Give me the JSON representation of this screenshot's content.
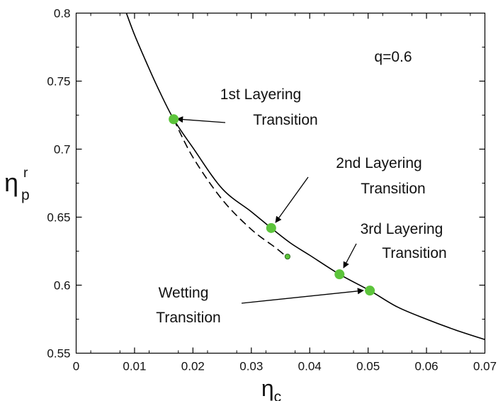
{
  "chart_data": {
    "type": "line",
    "title": "",
    "xlabel": {
      "main": "η",
      "sub": "c"
    },
    "ylabel": {
      "main": "η",
      "sub": "p",
      "sup": "r"
    },
    "xlim": [
      0,
      0.07
    ],
    "ylim": [
      0.55,
      0.8
    ],
    "grid": false,
    "x_ticks": [
      "0",
      "0.01",
      "0.02",
      "0.03",
      "0.04",
      "0.05",
      "0.06",
      "0.07"
    ],
    "y_ticks": [
      "0.55",
      "0.6",
      "0.65",
      "0.7",
      "0.75",
      "0.8"
    ],
    "series": [
      {
        "style": "solid",
        "color": "#000000",
        "x": [
          0.0086,
          0.01,
          0.012,
          0.014,
          0.0167,
          0.02,
          0.025,
          0.03,
          0.0334,
          0.0367,
          0.04,
          0.0451,
          0.0503,
          0.055,
          0.06,
          0.065,
          0.07
        ],
        "y": [
          0.8,
          0.784,
          0.764,
          0.745,
          0.722,
          0.701,
          0.671,
          0.654,
          0.642,
          0.631,
          0.622,
          0.608,
          0.596,
          0.584,
          0.575,
          0.567,
          0.56
        ]
      },
      {
        "style": "dashed",
        "color": "#000000",
        "x": [
          0.0167,
          0.02,
          0.025,
          0.03,
          0.034,
          0.036
        ],
        "y": [
          0.722,
          0.694,
          0.663,
          0.641,
          0.628,
          0.621
        ]
      }
    ],
    "points": [
      {
        "label": "1st Layering Transition",
        "x": 0.0167,
        "y": 0.722,
        "size": "large",
        "color": "#5cc43b"
      },
      {
        "label": "2nd Layering Transition",
        "x": 0.0334,
        "y": 0.642,
        "size": "large",
        "color": "#5cc43b"
      },
      {
        "label": "3rd Layering Transition",
        "x": 0.0451,
        "y": 0.608,
        "size": "large",
        "color": "#5cc43b"
      },
      {
        "label": "Wetting Transition",
        "x": 0.0503,
        "y": 0.596,
        "size": "large",
        "color": "#5cc43b"
      },
      {
        "label": "",
        "x": 0.0362,
        "y": 0.621,
        "size": "small",
        "color": "#5cc43b"
      }
    ],
    "annotations": {
      "param": "q=0.6",
      "first": [
        "1st Layering",
        "Transition"
      ],
      "second": [
        "2nd Layering",
        "Transition"
      ],
      "third": [
        "3rd Layering",
        "Transition"
      ],
      "wetting": [
        "Wetting",
        "Transition"
      ]
    }
  }
}
